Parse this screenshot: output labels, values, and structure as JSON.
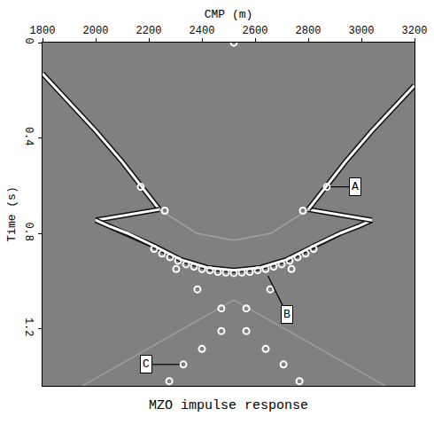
{
  "chart_data": {
    "type": "scatter",
    "title": "MZO impulse response",
    "x_label": "CMP (m)",
    "y_label": "Time (s)",
    "xlim": [
      1800,
      3200
    ],
    "xticks": [
      1800,
      2000,
      2200,
      2400,
      2600,
      2800,
      3000,
      3200
    ],
    "ylim": [
      1.44,
      0
    ],
    "yticks": [
      0,
      0.4,
      0.8,
      1.2
    ],
    "grid": false,
    "series": [
      {
        "type": "line",
        "color": "#ffffff",
        "line_style": "solid",
        "x": [
          1800,
          1900,
          2000,
          2100,
          2190,
          2240
        ],
        "values": [
          0.13,
          0.25,
          0.37,
          0.5,
          0.63,
          0.7
        ]
      },
      {
        "type": "line",
        "color": "#ffffff",
        "line_style": "solid",
        "x": [
          2240,
          2000
        ],
        "values": [
          0.7,
          0.745
        ]
      },
      {
        "type": "line",
        "color": "#ffffff",
        "line_style": "solid",
        "x": [
          2000,
          2050,
          2120,
          2220,
          2320,
          2420,
          2520,
          2620,
          2720,
          2820,
          2920,
          2990,
          3040
        ],
        "values": [
          0.745,
          0.77,
          0.8,
          0.853,
          0.91,
          0.944,
          0.955,
          0.944,
          0.91,
          0.853,
          0.8,
          0.77,
          0.745
        ]
      },
      {
        "type": "line",
        "color": "#ffffff",
        "line_style": "solid",
        "x": [
          3040,
          2800
        ],
        "values": [
          0.745,
          0.7
        ]
      },
      {
        "type": "line",
        "color": "#ffffff",
        "line_style": "solid",
        "x": [
          2800,
          2850,
          2940,
          3040,
          3140,
          3200
        ],
        "values": [
          0.7,
          0.63,
          0.5,
          0.37,
          0.25,
          0.18
        ]
      },
      {
        "type": "line",
        "color": "#a0a0a0",
        "line_style": "solid",
        "x": [
          2240,
          2380,
          2520,
          2660,
          2800
        ],
        "values": [
          0.7,
          0.8,
          0.83,
          0.8,
          0.7
        ]
      },
      {
        "type": "line",
        "color": "#9a9a9a",
        "line_style": "solid",
        "x": [
          2520,
          1950
        ],
        "values": [
          1.08,
          1.44
        ]
      },
      {
        "type": "line",
        "color": "#9a9a9a",
        "line_style": "solid",
        "x": [
          2520,
          3090
        ],
        "values": [
          1.08,
          1.44
        ]
      },
      {
        "type": "scatter",
        "color": "#ffffff",
        "marker": "circle-open",
        "x": [
          2520,
          2170,
          2870,
          2260,
          2780,
          2220,
          2250,
          2280,
          2310,
          2340,
          2370,
          2400,
          2430,
          2460,
          2490,
          2520,
          2550,
          2580,
          2610,
          2640,
          2670,
          2700,
          2730,
          2760,
          2790,
          2820,
          2303,
          2737,
          2383,
          2657,
          2473,
          2567,
          2473,
          2567,
          2400,
          2640,
          2330,
          2707,
          2277,
          2767
        ],
        "values": [
          0,
          0.605,
          0.605,
          0.705,
          0.705,
          0.865,
          0.885,
          0.9,
          0.915,
          0.93,
          0.94,
          0.95,
          0.955,
          0.962,
          0.965,
          0.967,
          0.965,
          0.962,
          0.955,
          0.95,
          0.94,
          0.93,
          0.915,
          0.9,
          0.885,
          0.865,
          0.95,
          0.95,
          1.035,
          1.035,
          1.115,
          1.115,
          1.21,
          1.21,
          1.285,
          1.285,
          1.35,
          1.35,
          1.42,
          1.42
        ]
      }
    ],
    "annotations": [
      {
        "text": "A",
        "x": 2870,
        "y": 0.605,
        "text_x": 2975,
        "text_y": 0.605
      },
      {
        "text": "B",
        "x": 2643,
        "y": 0.965,
        "text_x": 2720,
        "text_y": 1.14
      },
      {
        "text": "C",
        "x": 2330,
        "y": 1.35,
        "text_x": 2190,
        "text_y": 1.35
      }
    ]
  }
}
